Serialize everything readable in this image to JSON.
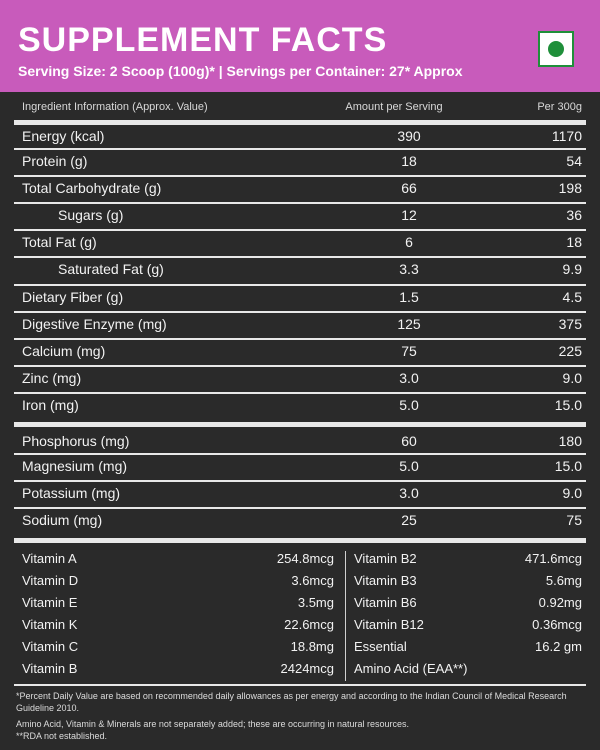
{
  "header": {
    "title": "SUPPLEMENT FACTS",
    "serving_line": "Serving Size: 2 Scoop (100g)*   |   Servings per Container: 27* Approx",
    "veg_mark_color": "#1f8f3a"
  },
  "columns": {
    "ingredient": "Ingredient Information (Approx. Value)",
    "per_serving": "Amount per Serving",
    "per_300g": "Per 300g"
  },
  "nutrients": [
    {
      "label": "Energy (kcal)",
      "amount": "390",
      "per300": "1170"
    },
    {
      "label": "Protein (g)",
      "amount": "18",
      "per300": "54"
    },
    {
      "label": "Total Carbohydrate (g)",
      "amount": "66",
      "per300": "198"
    },
    {
      "label": "Sugars (g)",
      "amount": "12",
      "per300": "36"
    },
    {
      "label": "Total Fat (g)",
      "amount": "6",
      "per300": "18"
    },
    {
      "label": "Saturated Fat (g)",
      "amount": "3.3",
      "per300": "9.9"
    },
    {
      "label": "Dietary Fiber (g)",
      "amount": "1.5",
      "per300": "4.5"
    },
    {
      "label": "Digestive Enzyme (mg)",
      "amount": "125",
      "per300": "375"
    },
    {
      "label": "Calcium (mg)",
      "amount": "75",
      "per300": "225"
    },
    {
      "label": "Zinc (mg)",
      "amount": "3.0",
      "per300": "9.0"
    },
    {
      "label": "Iron (mg)",
      "amount": "5.0",
      "per300": "15.0"
    },
    {
      "label": "Phosphorus (mg)",
      "amount": "60",
      "per300": "180"
    },
    {
      "label": "Magnesium (mg)",
      "amount": "5.0",
      "per300": "15.0"
    },
    {
      "label": "Potassium (mg)",
      "amount": "3.0",
      "per300": "9.0"
    },
    {
      "label": "Sodium (mg)",
      "amount": "25",
      "per300": "75"
    }
  ],
  "vitamins_left": [
    {
      "name": "Vitamin A",
      "value": "254.8mcg"
    },
    {
      "name": "Vitamin D",
      "value": "3.6mcg"
    },
    {
      "name": "Vitamin E",
      "value": "3.5mg"
    },
    {
      "name": "Vitamin K",
      "value": "22.6mcg"
    },
    {
      "name": "Vitamin C",
      "value": "18.8mg"
    },
    {
      "name": "Vitamin B",
      "value": "2424mcg"
    }
  ],
  "vitamins_right": [
    {
      "name": "Vitamin B2",
      "value": "471.6mcg"
    },
    {
      "name": "Vitamin B3",
      "value": "5.6mg"
    },
    {
      "name": "Vitamin B6",
      "value": "0.92mg"
    },
    {
      "name": "Vitamin B12",
      "value": "0.36mcg"
    },
    {
      "name": "Essential",
      "value": "16.2 gm"
    },
    {
      "name": "Amino Acid (EAA**)",
      "value": ""
    }
  ],
  "footnotes": [
    "*Percent Daily Value are based on recommended daily allowances as per energy and according to the Indian Council of Medical Research Guideline 2010.",
    "Amino Acid, Vitamin & Minerals are not separately added; these are occurring in natural resources.",
    "**RDA not established."
  ]
}
